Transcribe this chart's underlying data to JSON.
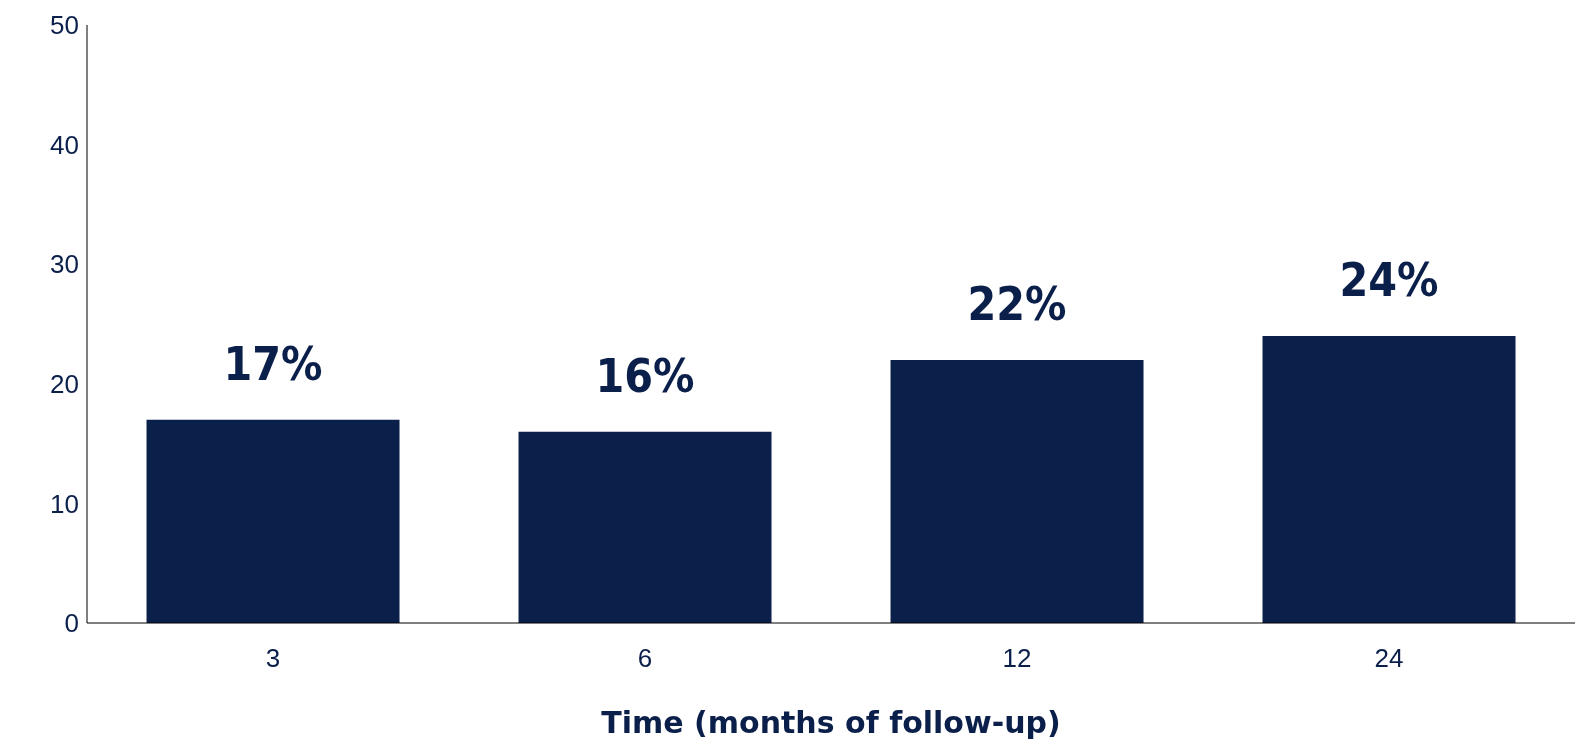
{
  "chart_data": {
    "type": "bar",
    "xlabel": "Time (months of follow-up)",
    "categories": [
      "3",
      "6",
      "12",
      "24"
    ],
    "values": [
      17,
      16,
      22,
      24
    ],
    "value_labels": [
      "17%",
      "16%",
      "22%",
      "24%"
    ],
    "color": "#0b1f4b",
    "ylim": [
      0,
      50
    ],
    "yticks": [
      0,
      10,
      20,
      30,
      40,
      50
    ],
    "grid": false,
    "legend": false
  }
}
